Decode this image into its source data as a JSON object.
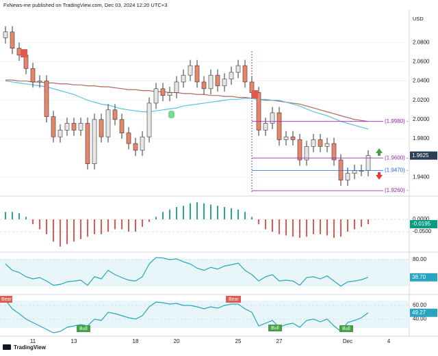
{
  "header": {
    "text": "FxNews-me published on TradingView.com, Dec 03, 2024 12:20 UTC+3",
    "currency": "USD"
  },
  "footer": {
    "brand": "TradingView"
  },
  "annotations": [
    "Bear",
    "Bear",
    "Bull",
    "Bull",
    "Bull"
  ],
  "chart_data": [
    {
      "type": "candlestick",
      "categories": [
        null,
        null,
        null,
        null,
        "11",
        null,
        null,
        null,
        null,
        null,
        "13",
        null,
        null,
        null,
        null,
        null,
        null,
        null,
        null,
        "18",
        null,
        null,
        null,
        null,
        null,
        "20",
        null,
        null,
        null,
        null,
        null,
        null,
        null,
        null,
        "25",
        null,
        null,
        null,
        null,
        null,
        "27",
        null,
        null,
        null,
        null,
        null,
        null,
        null,
        null,
        null,
        "Dec",
        null,
        null,
        null,
        null,
        null,
        "4"
      ],
      "open": [
        2.085,
        2.091,
        2.074,
        2.067,
        2.053,
        2.039,
        2.04,
        2.003,
        1.982,
        1.989,
        1.996,
        1.989,
        1.996,
        1.954,
        2.0,
        1.982,
        2.01,
        2.0,
        1.986,
        1.975,
        1.968,
        1.982,
        2.017,
        2.032,
        2.025,
        2.028,
        2.039,
        2.046,
        2.056,
        2.039,
        2.032,
        2.046,
        2.035,
        2.042,
        2.049,
        2.056,
        2.039,
        2.028,
        1.989,
        1.996,
        2.007,
        1.979,
        1.982,
        1.979,
        1.958,
        1.972,
        1.979,
        1.972,
        1.975,
        1.958,
        1.937,
        1.944,
        1.947,
        1.947,
        null,
        null,
        null
      ],
      "high": [
        2.097,
        2.097,
        2.08,
        2.073,
        2.059,
        2.046,
        2.046,
        2.009,
        1.995,
        2.002,
        2.002,
        2.002,
        2.002,
        2.006,
        2.006,
        2.016,
        2.016,
        2.006,
        1.992,
        1.981,
        1.988,
        2.023,
        2.038,
        2.038,
        2.034,
        2.045,
        2.052,
        2.062,
        2.062,
        2.045,
        2.052,
        2.052,
        2.048,
        2.055,
        2.062,
        2.062,
        2.045,
        2.034,
        2.002,
        2.013,
        2.013,
        1.988,
        1.988,
        1.985,
        1.978,
        1.985,
        1.985,
        1.981,
        1.981,
        1.964,
        1.95,
        1.953,
        1.953,
        1.968,
        null,
        null,
        null
      ],
      "low": [
        2.079,
        2.068,
        2.061,
        2.047,
        2.033,
        2.033,
        1.997,
        1.976,
        1.976,
        1.983,
        1.983,
        1.983,
        1.948,
        1.948,
        1.976,
        1.976,
        1.994,
        1.98,
        1.969,
        1.962,
        1.962,
        1.976,
        2.011,
        2.019,
        2.019,
        2.022,
        2.033,
        2.04,
        2.033,
        2.026,
        2.026,
        2.029,
        2.029,
        2.036,
        2.043,
        2.033,
        2.022,
        1.983,
        1.983,
        1.99,
        1.973,
        1.973,
        1.973,
        1.952,
        1.952,
        1.966,
        1.966,
        1.966,
        1.952,
        1.931,
        1.931,
        1.938,
        1.941,
        1.941,
        null,
        null,
        null
      ],
      "close": [
        2.091,
        2.074,
        2.067,
        2.053,
        2.039,
        2.04,
        2.003,
        1.982,
        1.989,
        1.996,
        1.989,
        1.996,
        1.954,
        2.0,
        1.982,
        2.01,
        2.0,
        1.986,
        1.975,
        1.968,
        1.982,
        2.017,
        2.032,
        2.025,
        2.028,
        2.039,
        2.046,
        2.056,
        2.039,
        2.032,
        2.046,
        2.035,
        2.042,
        2.049,
        2.056,
        2.039,
        2.028,
        1.989,
        1.996,
        2.007,
        1.979,
        1.982,
        1.979,
        1.958,
        1.972,
        1.979,
        1.972,
        1.975,
        1.958,
        1.937,
        1.944,
        1.947,
        1.947,
        1.9625,
        null,
        null,
        null
      ],
      "up_color": "#e6e6e6",
      "down_color": "#e8866a",
      "lines": [
        {
          "color": "#b5655a",
          "values": [
            2.041,
            2.041,
            2.04,
            2.04,
            2.039,
            2.039,
            2.038,
            2.038,
            2.037,
            2.037,
            2.036,
            2.036,
            2.035,
            2.035,
            2.034,
            2.034,
            2.033,
            2.032,
            2.031,
            2.031,
            2.03,
            2.03,
            2.029,
            2.029,
            2.028,
            2.028,
            2.027,
            2.027,
            2.026,
            2.026,
            2.025,
            2.025,
            2.024,
            2.024,
            2.023,
            2.023,
            2.022,
            2.021,
            2.02,
            2.02,
            2.019,
            2.018,
            2.017,
            2.016,
            2.014,
            2.012,
            2.01,
            2.008,
            2.006,
            2.004,
            2.002,
            2.0,
            1.999,
            1.998,
            null,
            null,
            null
          ]
        },
        {
          "color": "#5bc0de",
          "values": [
            2.04,
            2.039,
            2.038,
            2.037,
            2.036,
            2.035,
            2.034,
            2.032,
            2.03,
            2.028,
            2.026,
            2.023,
            2.02,
            2.018,
            2.016,
            2.015,
            2.013,
            2.011,
            2.01,
            2.009,
            2.008,
            2.008,
            2.009,
            2.01,
            2.011,
            2.012,
            2.014,
            2.015,
            2.016,
            2.017,
            2.018,
            2.019,
            2.02,
            2.021,
            2.021,
            2.022,
            2.022,
            2.021,
            2.021,
            2.02,
            2.02,
            2.018,
            2.016,
            2.014,
            2.011,
            2.008,
            2.006,
            2.004,
            2.001,
            1.998,
            1.996,
            1.994,
            1.992,
            1.99,
            null,
            null,
            null
          ]
        }
      ],
      "levels": [
        {
          "value": 1.998,
          "label": "(1.9980) -",
          "color": "#9c27b0"
        },
        {
          "value": 1.96,
          "label": "(1.9600) -",
          "color": "#9c27b0"
        },
        {
          "value": 1.947,
          "label": "(1.9470) -",
          "color": "#2962ff"
        },
        {
          "value": 1.926,
          "label": "(1.9260) -",
          "color": "#9c27b0"
        }
      ],
      "last_value": 1.9625,
      "last_color": "#2a3f55",
      "ylim": [
        1.9225,
        2.11
      ],
      "yticks": [
        {
          "value": 2.08,
          "label": "2.0800"
        },
        {
          "value": 2.06,
          "label": "2.0600"
        },
        {
          "value": 2.04,
          "label": "2.0400"
        },
        {
          "value": 2.02,
          "label": "2.0200"
        },
        {
          "value": 2.0,
          "label": "2.0000"
        },
        {
          "value": 1.98,
          "label": "1.9800"
        },
        {
          "value": 1.94,
          "label": "1.9400"
        }
      ]
    },
    {
      "type": "bar",
      "values": [
        0.03,
        0.03,
        0.025,
        0.01,
        -0.02,
        -0.04,
        -0.06,
        -0.09,
        -0.11,
        -0.1,
        -0.09,
        -0.08,
        -0.07,
        -0.06,
        -0.06,
        -0.05,
        -0.04,
        -0.04,
        -0.05,
        -0.05,
        -0.03,
        -0.01,
        0.01,
        0.03,
        0.04,
        0.05,
        0.055,
        0.065,
        0.07,
        0.065,
        0.06,
        0.055,
        0.05,
        0.045,
        0.04,
        0.03,
        0.01,
        -0.02,
        -0.04,
        -0.05,
        -0.06,
        -0.065,
        -0.07,
        -0.075,
        -0.07,
        -0.06,
        -0.06,
        -0.065,
        -0.075,
        -0.07,
        -0.05,
        -0.04,
        -0.03,
        -0.0195,
        null,
        null,
        null
      ],
      "pos_color": "#26a69a",
      "neg_color": "#ef5350",
      "last_value": -0.0195,
      "last_color": "#089981",
      "ylim": [
        -0.13,
        0.086
      ],
      "yticks": [
        {
          "value": 0,
          "label": "0.0000"
        },
        {
          "value": -0.05,
          "label": "-0.0500"
        }
      ]
    },
    {
      "type": "line",
      "values": [
        70,
        55,
        50,
        40,
        35,
        38,
        30,
        20,
        22,
        28,
        30,
        32,
        20,
        40,
        35,
        55,
        45,
        38,
        32,
        30,
        40,
        70,
        85,
        84,
        80,
        82,
        75,
        70,
        60,
        55,
        62,
        58,
        65,
        68,
        72,
        55,
        45,
        30,
        40,
        45,
        30,
        32,
        30,
        20,
        38,
        40,
        35,
        42,
        30,
        18,
        28,
        30,
        33,
        38.7,
        null,
        null,
        null
      ],
      "color": "#26a4c0",
      "last_label": {
        "value": 38.7,
        "label": "38.70"
      },
      "last_color": "#26a4c0",
      "ylim": [
        0,
        96
      ],
      "yticks": [
        {
          "value": 80,
          "label": "80.00"
        }
      ]
    },
    {
      "type": "line",
      "values": [
        68,
        55,
        48,
        40,
        35,
        30,
        25,
        20,
        22,
        28,
        30,
        32,
        30,
        40,
        38,
        50,
        48,
        45,
        42,
        40,
        45,
        58,
        65,
        64,
        62,
        63,
        60,
        60,
        58,
        55,
        58,
        56,
        60,
        62,
        62,
        55,
        50,
        30,
        34,
        38,
        28,
        32,
        34,
        28,
        38,
        40,
        36,
        40,
        30,
        22,
        35,
        38,
        42,
        49.27,
        null,
        null,
        null
      ],
      "color": "#26a4c0",
      "last_value": 49.27,
      "last_color": "#26a4c0",
      "ylim": [
        17,
        75
      ],
      "yticks": [
        {
          "value": 60,
          "label": "60.00"
        },
        {
          "value": 40,
          "label": "40.00"
        }
      ]
    }
  ]
}
